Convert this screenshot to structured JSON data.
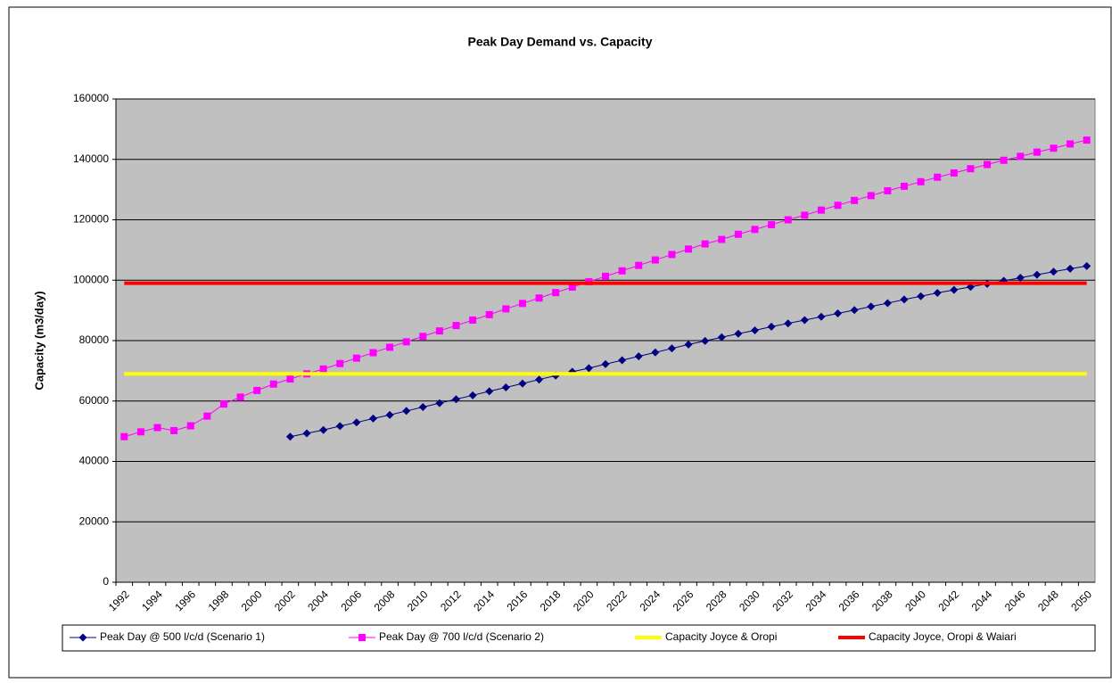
{
  "chart_data": {
    "type": "line",
    "title": "Peak Day Demand vs. Capacity",
    "y_label": "Capacity (m3/day)",
    "categories": [
      "1992",
      null,
      "1994",
      null,
      "1996",
      null,
      "1998",
      null,
      "2000",
      null,
      "2002",
      null,
      "2004",
      null,
      "2006",
      null,
      "2008",
      null,
      "2010",
      null,
      "2012",
      null,
      "2014",
      null,
      "2016",
      null,
      "2018",
      null,
      "2020",
      null,
      "2022",
      null,
      "2024",
      null,
      "2026",
      null,
      "2028",
      null,
      "2030",
      null,
      "2032",
      null,
      "2034",
      null,
      "2036",
      null,
      "2038",
      null,
      "2040",
      null,
      "2042",
      null,
      "2044",
      null,
      "2046",
      null,
      "2048",
      null,
      "2050"
    ],
    "ylim": [
      0,
      160000
    ],
    "yticks": [
      0,
      20000,
      40000,
      60000,
      80000,
      100000,
      120000,
      140000,
      160000
    ],
    "grid": true,
    "legend": "bottom",
    "series": [
      {
        "name": "Peak Day @ 500 l/c/d (Scenario 1)",
        "color": "#000080",
        "marker": "diamond",
        "values": [
          null,
          null,
          null,
          null,
          null,
          null,
          null,
          null,
          null,
          null,
          48200,
          49300,
          50400,
          51700,
          52900,
          54200,
          55400,
          56700,
          58000,
          59300,
          60600,
          61900,
          63200,
          64500,
          65800,
          67100,
          68400,
          69700,
          70900,
          72200,
          73500,
          74800,
          76100,
          77400,
          78700,
          79900,
          81100,
          82300,
          83400,
          84600,
          85700,
          86800,
          87900,
          89000,
          90100,
          91300,
          92400,
          93600,
          94700,
          95800,
          96800,
          97800,
          98800,
          99800,
          100800,
          101800,
          102800,
          103800,
          104700
        ]
      },
      {
        "name": "Peak Day @ 700 l/c/d (Scenario 2)",
        "color": "#ff00ff",
        "marker": "square",
        "values": [
          48200,
          49800,
          51200,
          50200,
          51800,
          55000,
          59000,
          61300,
          63500,
          65600,
          67300,
          69000,
          70600,
          72400,
          74200,
          76000,
          77800,
          79600,
          81400,
          83200,
          85000,
          86800,
          88600,
          90500,
          92300,
          94100,
          95900,
          97700,
          99500,
          101300,
          103100,
          104900,
          106700,
          108500,
          110300,
          112000,
          113500,
          115200,
          116800,
          118400,
          120000,
          121500,
          123200,
          124800,
          126400,
          128000,
          129600,
          131100,
          132600,
          134100,
          135500,
          136900,
          138300,
          139700,
          141000,
          142400,
          143700,
          145100,
          146400
        ]
      },
      {
        "name": "Capacity Joyce & Oropi",
        "color": "#ffff00",
        "marker": "none",
        "values": [
          69000,
          69000,
          69000,
          69000,
          69000,
          69000,
          69000,
          69000,
          69000,
          69000,
          69000,
          69000,
          69000,
          69000,
          69000,
          69000,
          69000,
          69000,
          69000,
          69000,
          69000,
          69000,
          69000,
          69000,
          69000,
          69000,
          69000,
          69000,
          69000,
          69000,
          69000,
          69000,
          69000,
          69000,
          69000,
          69000,
          69000,
          69000,
          69000,
          69000,
          69000,
          69000,
          69000,
          69000,
          69000,
          69000,
          69000,
          69000,
          69000,
          69000,
          69000,
          69000,
          69000,
          69000,
          69000,
          69000,
          69000,
          69000,
          69000
        ]
      },
      {
        "name": "Capacity Joyce, Oropi & Waiari",
        "color": "#ff0000",
        "marker": "none",
        "values": [
          99000,
          99000,
          99000,
          99000,
          99000,
          99000,
          99000,
          99000,
          99000,
          99000,
          99000,
          99000,
          99000,
          99000,
          99000,
          99000,
          99000,
          99000,
          99000,
          99000,
          99000,
          99000,
          99000,
          99000,
          99000,
          99000,
          99000,
          99000,
          99000,
          99000,
          99000,
          99000,
          99000,
          99000,
          99000,
          99000,
          99000,
          99000,
          99000,
          99000,
          99000,
          99000,
          99000,
          99000,
          99000,
          99000,
          99000,
          99000,
          99000,
          99000,
          99000,
          99000,
          99000,
          99000,
          99000,
          99000,
          99000,
          99000,
          99000
        ]
      }
    ]
  }
}
